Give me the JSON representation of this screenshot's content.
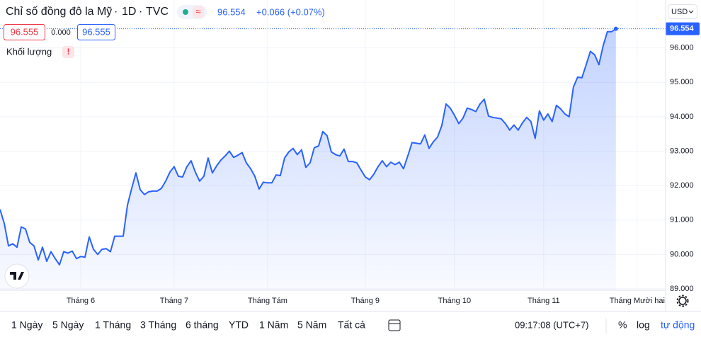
{
  "chart_data": {
    "type": "area",
    "title": "Chỉ số đồng đô la Mỹ",
    "interval": "1D",
    "source": "TVC",
    "change": "+0.066 (+0.07%)",
    "color": "#2962ff",
    "values": [
      91.31,
      90.9,
      90.25,
      90.31,
      90.21,
      90.8,
      90.74,
      90.35,
      90.25,
      89.84,
      90.21,
      89.8,
      90.08,
      89.88,
      89.7,
      90.08,
      90.04,
      90.1,
      89.88,
      89.94,
      89.92,
      90.51,
      90.15,
      90.0,
      90.15,
      90.17,
      90.08,
      90.53,
      90.53,
      90.53,
      91.43,
      91.92,
      92.37,
      91.88,
      91.74,
      91.82,
      91.84,
      91.84,
      91.92,
      92.13,
      92.39,
      92.55,
      92.27,
      92.25,
      92.55,
      92.72,
      92.39,
      92.13,
      92.27,
      92.8,
      92.37,
      92.57,
      92.74,
      92.86,
      93.0,
      92.82,
      92.88,
      92.96,
      92.66,
      92.49,
      92.27,
      91.9,
      92.1,
      92.08,
      92.08,
      92.31,
      92.29,
      92.8,
      92.98,
      93.08,
      92.9,
      93.04,
      92.53,
      92.66,
      93.1,
      93.15,
      93.57,
      93.45,
      92.98,
      92.9,
      92.86,
      93.06,
      92.7,
      92.7,
      92.66,
      92.45,
      92.25,
      92.17,
      92.33,
      92.55,
      92.72,
      92.55,
      92.68,
      92.61,
      92.68,
      92.49,
      92.86,
      93.25,
      93.23,
      93.21,
      93.47,
      93.08,
      93.27,
      93.41,
      93.74,
      94.37,
      94.25,
      94.04,
      93.8,
      93.96,
      94.25,
      94.21,
      94.15,
      94.37,
      94.51,
      94.02,
      93.98,
      93.96,
      93.94,
      93.8,
      93.61,
      93.76,
      93.61,
      93.82,
      93.98,
      93.86,
      93.37,
      94.17,
      93.9,
      94.08,
      93.86,
      94.33,
      94.23,
      94.08,
      94.0,
      94.86,
      95.15,
      95.13,
      95.51,
      95.9,
      95.8,
      95.51,
      96.06,
      96.47,
      96.47,
      96.554
    ],
    "xlim": [
      0,
      156.7
    ],
    "xticks": [
      {
        "value": 19,
        "label": "Tháng 6"
      },
      {
        "value": 41,
        "label": "Tháng 7"
      },
      {
        "value": 63,
        "label": "Tháng Tám"
      },
      {
        "value": 86,
        "label": "Tháng 9"
      },
      {
        "value": 107,
        "label": "Tháng 10"
      },
      {
        "value": 128,
        "label": "Tháng 11"
      },
      {
        "value": 150,
        "label": "Tháng Mười hai"
      }
    ],
    "ylim": [
      88.96,
      97.39
    ],
    "yticks": [
      {
        "value": 89,
        "label": "89.000"
      },
      {
        "value": 90,
        "label": "90.000"
      },
      {
        "value": 91,
        "label": "91.000"
      },
      {
        "value": 92,
        "label": "92.000"
      },
      {
        "value": 93,
        "label": "93.000"
      },
      {
        "value": 94,
        "label": "94.000"
      },
      {
        "value": 95,
        "label": "95.000"
      },
      {
        "value": 96,
        "label": "96.000"
      }
    ],
    "grid": true
  },
  "ui": {
    "legend": {
      "bid": "96.555",
      "spread": "0.000",
      "ask": "96.555",
      "volume": "Khối lượng"
    },
    "currency": "USD",
    "ranges": [
      "1 Ngày",
      "5 Ngày",
      "1 Tháng",
      "3 Tháng",
      "6 tháng",
      "YTD",
      "1 Năm",
      "5 Năm",
      "Tất cả"
    ],
    "clock": "09:17:08 (UTC+7)",
    "percent": "%",
    "log": "log",
    "auto": "tự động"
  }
}
